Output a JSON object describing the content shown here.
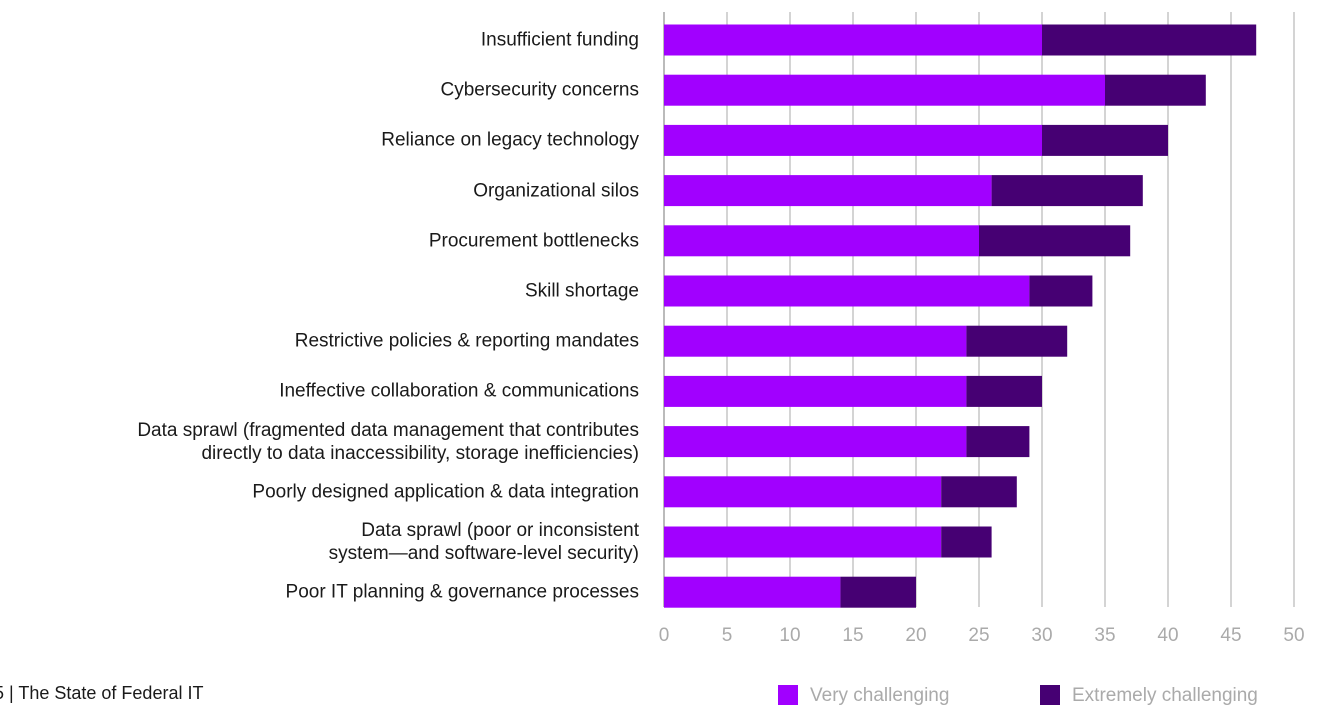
{
  "chart_data": {
    "type": "stacked_barh",
    "categories": [
      "Insufficient funding",
      "Cybersecurity concerns",
      "Reliance on legacy technology",
      "Organizational silos",
      "Procurement bottlenecks",
      "Skill shortage",
      "Restrictive policies & reporting mandates",
      "Ineffective collaboration & communications",
      "Data sprawl (fragmented data management that contributes\ndirectly to data inaccessibility, storage inefficiencies)",
      "Poorly designed application & data integration",
      "Data sprawl (poor or inconsistent\nsystem—and software-level security)",
      "Poor IT planning & governance processes"
    ],
    "series": [
      {
        "name": "Very challenging",
        "color": "#a100ff",
        "values": [
          30,
          35,
          30,
          26,
          25,
          29,
          24,
          24,
          24,
          22,
          22,
          14
        ]
      },
      {
        "name": "Extremely challenging",
        "color": "#460073",
        "values": [
          17,
          8,
          10,
          12,
          12,
          5,
          8,
          6,
          5,
          6,
          4,
          6
        ]
      }
    ],
    "xlim": [
      0,
      50
    ],
    "xticks": [
      0,
      5,
      10,
      15,
      20,
      25,
      30,
      35,
      40,
      45,
      50
    ],
    "grid": true,
    "legend": "bottom-right"
  },
  "footer": "5 | The State of Federal IT"
}
